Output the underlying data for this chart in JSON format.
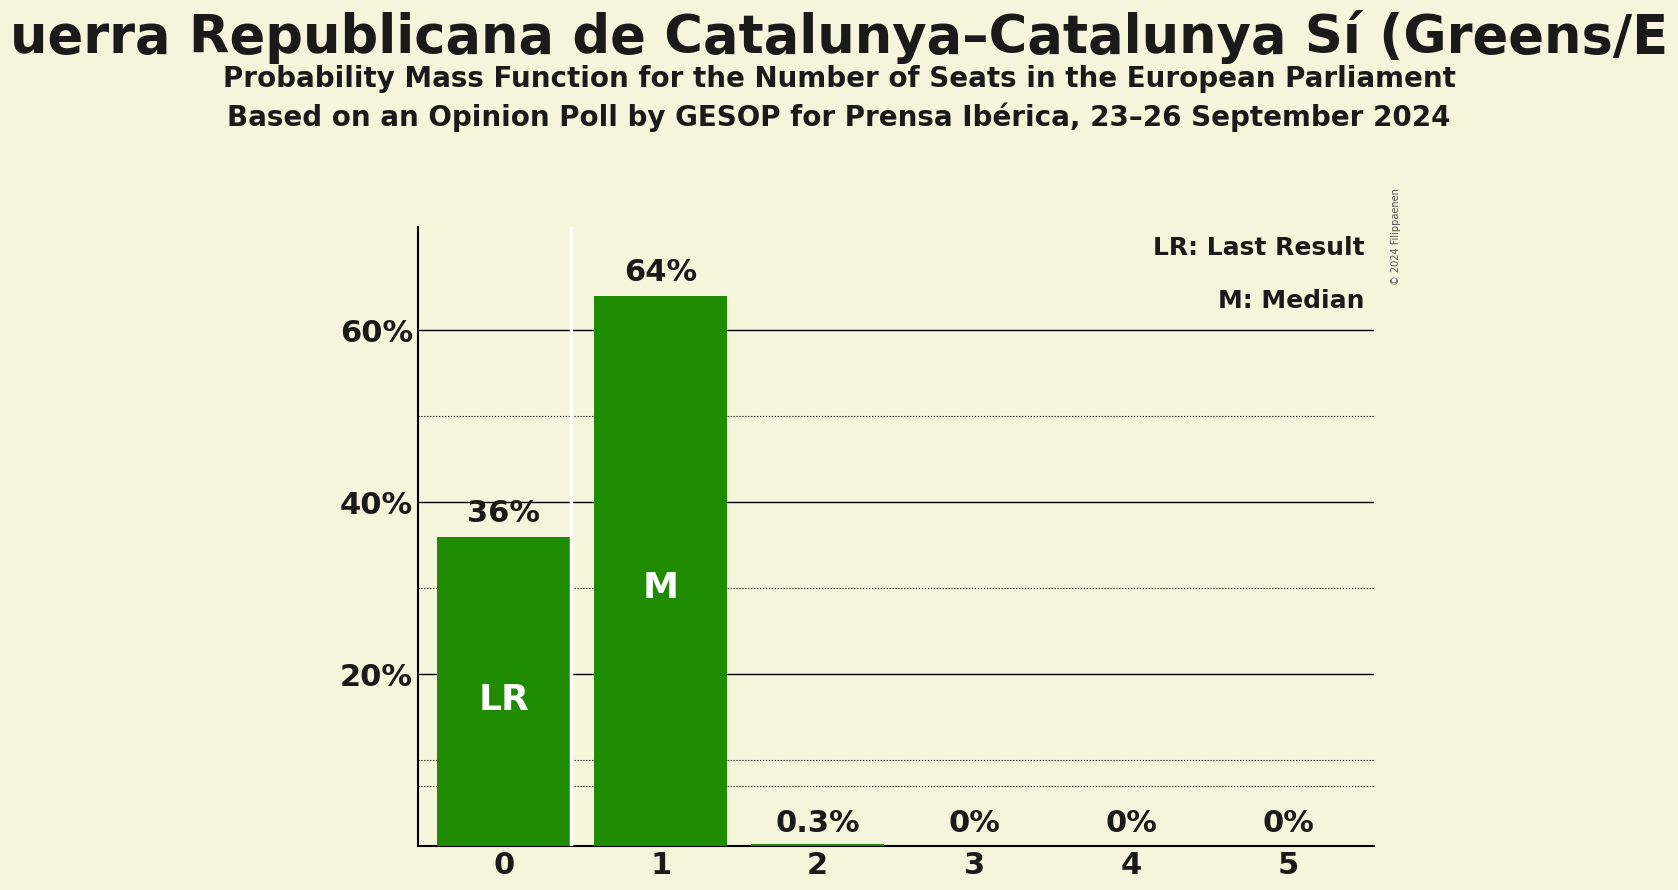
{
  "title_main": "uerra Republicana de Catalunya–Catalunya Sí (Greens/E",
  "subtitle1": "Probability Mass Function for the Number of Seats in the European Parliament",
  "subtitle2": "Based on an Opinion Poll by GESOP for Prensa Ibérica, 23–26 September 2024",
  "categories": [
    0,
    1,
    2,
    3,
    4,
    5
  ],
  "values": [
    0.36,
    0.64,
    0.003,
    0.0,
    0.0,
    0.0
  ],
  "bar_labels": [
    "36%",
    "64%",
    "0.3%",
    "0%",
    "0%",
    "0%"
  ],
  "bar_color": "#1E8B00",
  "background_color": "#F5F5DC",
  "text_color": "#1a1a1a",
  "ylim": [
    0,
    0.72
  ],
  "yticks": [
    0.0,
    0.2,
    0.4,
    0.6
  ],
  "ytick_labels": [
    "",
    "20%",
    "40%",
    "60%"
  ],
  "solid_hlines": [
    0.2,
    0.4,
    0.6
  ],
  "dotted_hlines": [
    0.1,
    0.3,
    0.5,
    0.07
  ],
  "legend_lr": "LR: Last Result",
  "legend_m": "M: Median",
  "copyright": "© 2024 Filippaenen",
  "bar_label_fontsize": 22,
  "inner_label_fontsize": 26,
  "axis_label_fontsize": 22,
  "title_fontsize": 38,
  "subtitle_fontsize": 20
}
